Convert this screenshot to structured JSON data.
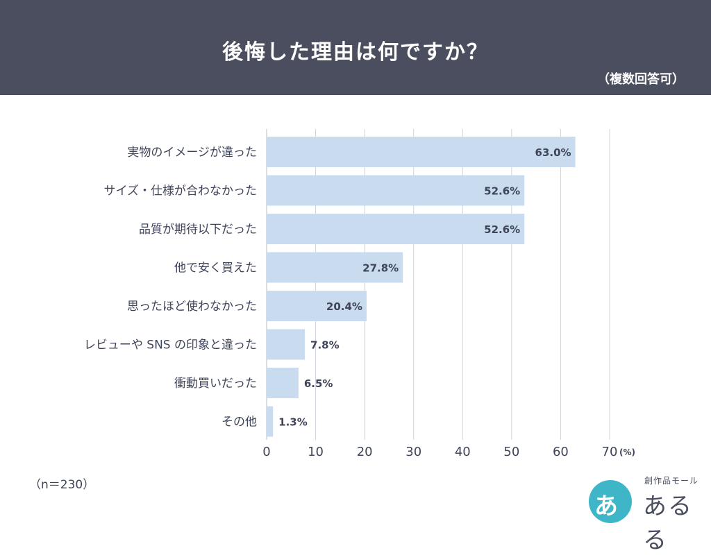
{
  "header": {
    "title": "後悔した理由は何ですか？",
    "subtitle": "（複数回答可）"
  },
  "sample_note": "（n＝230）",
  "logo": {
    "mark": "あ",
    "sub": "創作品モール",
    "name": "あるる"
  },
  "colors": {
    "header_bg": "#4b4e5e",
    "bar_fill": "#c9dcef",
    "grid": "#cfd3dc",
    "text": "#3f4459"
  },
  "chart_data": {
    "type": "bar",
    "orientation": "horizontal",
    "categories": [
      "実物のイメージが違った",
      "サイズ・仕様が合わなかった",
      "品質が期待以下だった",
      "他で安く買えた",
      "思ったほど使わなかった",
      "レビューや SNS の印象と違った",
      "衝動買いだった",
      "その他"
    ],
    "values": [
      63.0,
      52.6,
      52.6,
      27.8,
      20.4,
      7.8,
      6.5,
      1.3
    ],
    "data_labels": [
      "63.0%",
      "52.6%",
      "52.6%",
      "27.8%",
      "20.4%",
      "7.8%",
      "6.5%",
      "1.3%"
    ],
    "xlim": [
      0,
      70
    ],
    "xticks": [
      0,
      10,
      20,
      30,
      40,
      50,
      60,
      70
    ],
    "xunit": "(%)",
    "grid": true,
    "legend": "none"
  }
}
